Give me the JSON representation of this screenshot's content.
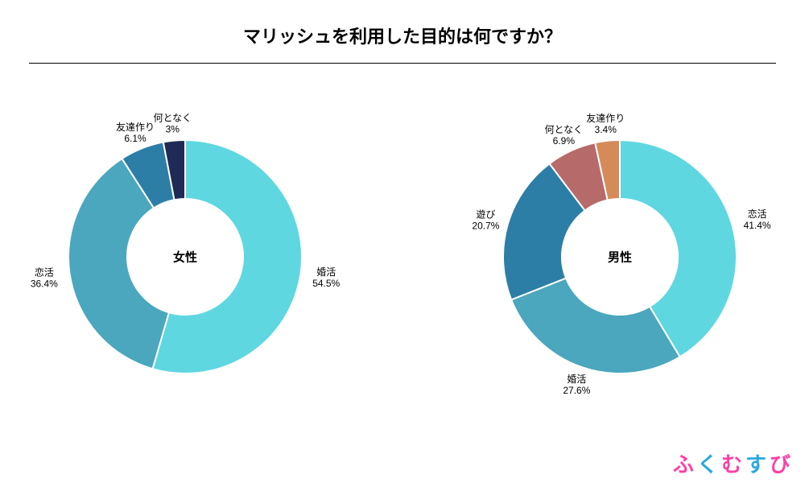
{
  "title": {
    "text": "マリッシュを利用した目的は何ですか？",
    "fontsize": 22
  },
  "background_color": "#ffffff",
  "brand": {
    "text": "ふくむすび",
    "chars": [
      "ふ",
      "く",
      "む",
      "す",
      "び"
    ],
    "colors": [
      "#ff3ea5",
      "#2aa8e0",
      "#ff3ea5",
      "#2aa8e0",
      "#ff3ea5"
    ],
    "fontsize": 26
  },
  "charts": {
    "type": "donut-pair",
    "donut_outer_r": 145,
    "donut_inner_r": 72,
    "svg_size": 420,
    "start_angle_deg": 0,
    "direction": "clockwise",
    "stroke": {
      "color": "#ffffff",
      "width": 2
    },
    "center_label_fontsize": 15,
    "slice_label_fontsize": 12,
    "left": {
      "center_label": "女性",
      "slices": [
        {
          "name": "婚活",
          "value": 54.5,
          "color": "#5fd7e0",
          "pct_text": "54.5%",
          "label_side": "right",
          "label_offset": 32
        },
        {
          "name": "恋活",
          "value": 36.4,
          "color": "#4aa7bd",
          "pct_text": "36.4%",
          "label_side": "left",
          "label_offset": 32
        },
        {
          "name": "友達作り",
          "value": 6.1,
          "color": "#2c7ea6",
          "pct_text": "6.1%",
          "label_side": "top",
          "label_offset": 22
        },
        {
          "name": "何となく",
          "value": 3.0,
          "color": "#1f2a56",
          "pct_text": "3%",
          "label_side": "top",
          "label_offset": 22
        }
      ]
    },
    "right": {
      "center_label": "男性",
      "slices": [
        {
          "name": "恋活",
          "value": 41.4,
          "color": "#5fd7e0",
          "pct_text": "41.4%",
          "label_side": "right",
          "label_offset": 32
        },
        {
          "name": "婚活",
          "value": 27.6,
          "color": "#4aa7bd",
          "pct_text": "27.6%",
          "label_side": "bottom",
          "label_offset": 22
        },
        {
          "name": "遊び",
          "value": 20.7,
          "color": "#2c7ea6",
          "pct_text": "20.7%",
          "label_side": "left",
          "label_offset": 28
        },
        {
          "name": "何となく",
          "value": 6.9,
          "color": "#b76a6a",
          "pct_text": "6.9%",
          "label_side": "top",
          "label_offset": 22
        },
        {
          "name": "友達作り",
          "value": 3.4,
          "color": "#d58a5a",
          "pct_text": "3.4%",
          "label_side": "top",
          "label_offset": 22
        }
      ]
    }
  }
}
